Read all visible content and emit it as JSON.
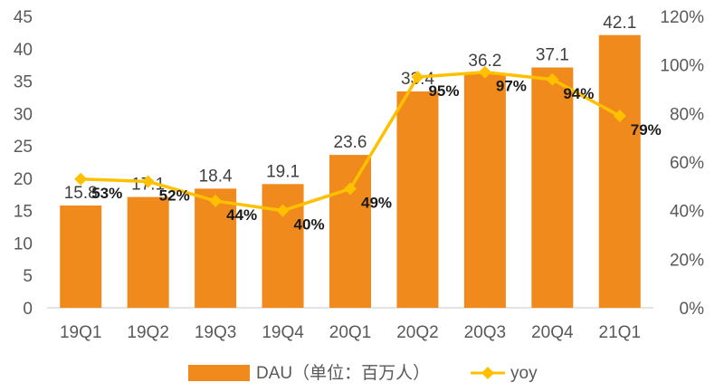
{
  "chart_data": {
    "type": "bar",
    "categories": [
      "19Q1",
      "19Q2",
      "19Q3",
      "19Q4",
      "20Q1",
      "20Q2",
      "20Q3",
      "20Q4",
      "21Q1"
    ],
    "series": [
      {
        "name": "DAU（单位：百万人）",
        "type": "bar",
        "axis": "left",
        "values": [
          15.8,
          17.1,
          18.4,
          19.1,
          23.6,
          33.4,
          36.2,
          37.1,
          42.1
        ],
        "labels": [
          "15.8",
          "17.1",
          "18.4",
          "19.1",
          "23.6",
          "33.4",
          "36.2",
          "37.1",
          "42.1"
        ],
        "color": "#F08A1C"
      },
      {
        "name": "yoy",
        "type": "line",
        "axis": "right",
        "values": [
          53,
          52,
          44,
          40,
          49,
          95,
          97,
          94,
          79
        ],
        "labels": [
          "53%",
          "52%",
          "44%",
          "40%",
          "49%",
          "95%",
          "97%",
          "94%",
          "79%"
        ],
        "color": "#FFC000"
      }
    ],
    "left_axis": {
      "ticks": [
        "0",
        "5",
        "10",
        "15",
        "20",
        "25",
        "30",
        "35",
        "40",
        "45"
      ],
      "range": [
        0,
        45
      ]
    },
    "right_axis": {
      "ticks": [
        "0%",
        "20%",
        "40%",
        "60%",
        "80%",
        "100%",
        "120%"
      ],
      "range": [
        0,
        120
      ]
    },
    "legend_position": "bottom",
    "grid": false
  }
}
